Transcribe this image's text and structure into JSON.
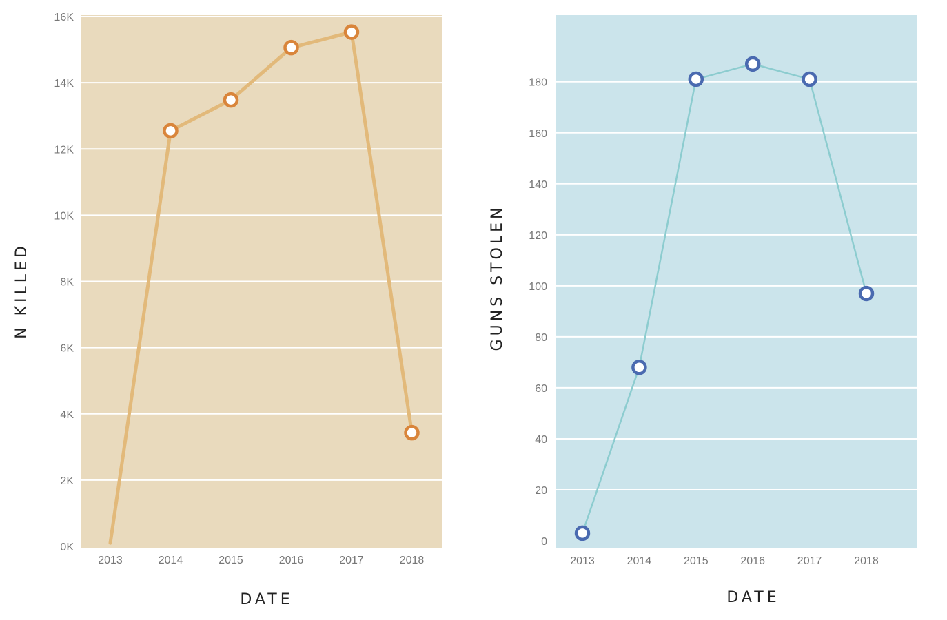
{
  "colors": {
    "left_background": "#e9dabd",
    "left_line": "#e2b97a",
    "left_marker": "#d9853b",
    "right_background": "#cbe4eb",
    "right_line": "#8ccccf",
    "right_marker": "#4a6ab0",
    "gridline": "#ffffff"
  },
  "chart_data": [
    {
      "type": "line",
      "title": "",
      "xlabel": "DATE",
      "ylabel": "N KILLED",
      "x": [
        "2013",
        "2014",
        "2015",
        "2016",
        "2017",
        "2018"
      ],
      "values": [
        100,
        12550,
        13480,
        15060,
        15530,
        3430
      ],
      "markers_shown_for": [
        "2014",
        "2015",
        "2016",
        "2017",
        "2018"
      ],
      "ylim": [
        0,
        16000
      ],
      "yticks": [
        {
          "value": 0,
          "label": "0K"
        },
        {
          "value": 2000,
          "label": "2K"
        },
        {
          "value": 4000,
          "label": "4K"
        },
        {
          "value": 6000,
          "label": "6K"
        },
        {
          "value": 8000,
          "label": "8K"
        },
        {
          "value": 10000,
          "label": "10K"
        },
        {
          "value": 12000,
          "label": "12K"
        },
        {
          "value": 14000,
          "label": "14K"
        },
        {
          "value": 16000,
          "label": "16K"
        }
      ],
      "grid": true
    },
    {
      "type": "line",
      "title": "",
      "xlabel": "DATE",
      "ylabel": "GUNS STOLEN",
      "x": [
        "2013",
        "2014",
        "2015",
        "2016",
        "2017",
        "2018"
      ],
      "values": [
        3,
        68,
        181,
        187,
        181,
        97
      ],
      "markers_shown_for": [
        "2013",
        "2014",
        "2015",
        "2016",
        "2017",
        "2018"
      ],
      "ylim": [
        0,
        200
      ],
      "yticks": [
        {
          "value": 0,
          "label": "0"
        },
        {
          "value": 20,
          "label": "20"
        },
        {
          "value": 40,
          "label": "40"
        },
        {
          "value": 60,
          "label": "60"
        },
        {
          "value": 80,
          "label": "80"
        },
        {
          "value": 100,
          "label": "100"
        },
        {
          "value": 120,
          "label": "120"
        },
        {
          "value": 140,
          "label": "140"
        },
        {
          "value": 160,
          "label": "160"
        },
        {
          "value": 180,
          "label": "180"
        }
      ],
      "grid": true
    }
  ]
}
